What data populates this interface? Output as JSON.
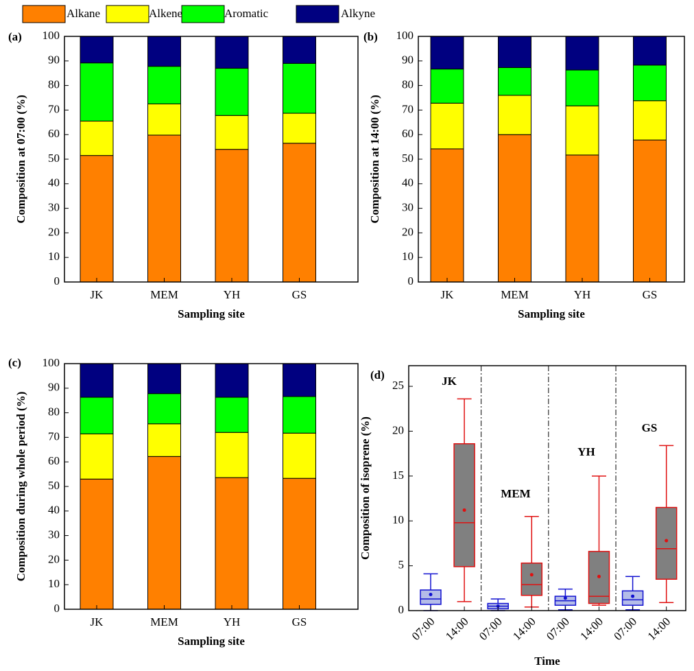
{
  "chart_data": [
    {
      "type": "stacked-bar",
      "label": "(a)",
      "ylabel": "Composition at 07:00 (%)",
      "xlabel": "Sampling site",
      "categories": [
        "JK",
        "MEM",
        "YH",
        "GS"
      ],
      "ylim": [
        0,
        100
      ],
      "yticks": [
        0,
        10,
        20,
        30,
        40,
        50,
        60,
        70,
        80,
        90,
        100
      ],
      "series": [
        {
          "name": "Alkane",
          "color": "#ff8000",
          "values": [
            51.5,
            59.8,
            54,
            56.5
          ]
        },
        {
          "name": "Alkene",
          "color": "#ffff00",
          "values": [
            14,
            12.7,
            13.8,
            12.2
          ]
        },
        {
          "name": "Aromatic",
          "color": "#00ff00",
          "values": [
            23.7,
            15.3,
            19.2,
            20.3
          ]
        },
        {
          "name": "Alkyne",
          "color": "#000080",
          "values": [
            10.8,
            12.2,
            13,
            11
          ]
        }
      ]
    },
    {
      "type": "stacked-bar",
      "label": "(b)",
      "ylabel": "Composition at 14:00 (%)",
      "xlabel": "Sampling site",
      "categories": [
        "JK",
        "MEM",
        "YH",
        "GS"
      ],
      "ylim": [
        0,
        100
      ],
      "yticks": [
        0,
        10,
        20,
        30,
        40,
        50,
        60,
        70,
        80,
        90,
        100
      ],
      "series": [
        {
          "color": "#ff8000",
          "values": [
            54.2,
            60,
            51.7,
            57.8
          ]
        },
        {
          "color": "#ffff00",
          "values": [
            18.6,
            16,
            20,
            16
          ]
        },
        {
          "color": "#00ff00",
          "values": [
            13.9,
            11.3,
            14.6,
            14.5
          ]
        },
        {
          "color": "#000080",
          "values": [
            13.3,
            12.7,
            13.7,
            11.7
          ]
        }
      ]
    },
    {
      "type": "stacked-bar",
      "label": "(c)",
      "ylabel": "Composition during whole period (%)",
      "xlabel": "Sampling site",
      "categories": [
        "JK",
        "MEM",
        "YH",
        "GS"
      ],
      "ylim": [
        0,
        100
      ],
      "yticks": [
        0,
        10,
        20,
        30,
        40,
        50,
        60,
        70,
        80,
        90,
        100
      ],
      "series": [
        {
          "color": "#ff8000",
          "values": [
            53,
            62.2,
            53.6,
            53.3
          ]
        },
        {
          "color": "#ffff00",
          "values": [
            18.4,
            13.3,
            18.4,
            18.4
          ]
        },
        {
          "color": "#00ff00",
          "values": [
            14.9,
            12.3,
            14.3,
            14.9
          ]
        },
        {
          "color": "#000080",
          "values": [
            13.7,
            12.2,
            13.7,
            13.4
          ]
        }
      ]
    },
    {
      "type": "box",
      "label": "(d)",
      "ylabel": "Composition of isoprene (%)",
      "xlabel": "Time",
      "categories": [
        "07:00",
        "14:00",
        "07:00",
        "14:00",
        "07:00",
        "14:00",
        "07:00",
        "14:00"
      ],
      "group_labels": [
        "JK",
        "MEM",
        "YH",
        "GS"
      ],
      "ylim": [
        0,
        27.3
      ],
      "yticks": [
        0,
        5,
        10,
        15,
        20,
        25
      ],
      "boxes": [
        {
          "whislo": 0,
          "q1": 0.7,
          "med": 1.3,
          "q3": 2.3,
          "whishi": 4.1,
          "mean": 1.8,
          "color": "#1010d0",
          "fill": "#b4bce8"
        },
        {
          "whislo": 1,
          "q1": 4.9,
          "med": 9.8,
          "q3": 18.6,
          "whishi": 23.6,
          "mean": 11.2,
          "color": "#e01010",
          "fill": "#808080"
        },
        {
          "whislo": 0,
          "q1": 0.2,
          "med": 0.5,
          "q3": 0.8,
          "whishi": 1.3,
          "mean": 0.5,
          "color": "#1010d0",
          "fill": "#b4bce8"
        },
        {
          "whislo": 0.4,
          "q1": 1.7,
          "med": 2.9,
          "q3": 5.3,
          "whishi": 10.5,
          "mean": 4,
          "color": "#e01010",
          "fill": "#808080"
        },
        {
          "whislo": 0.1,
          "q1": 0.6,
          "med": 1.1,
          "q3": 1.6,
          "whishi": 2.4,
          "mean": 1.4,
          "color": "#1010d0",
          "fill": "#b4bce8"
        },
        {
          "whislo": 0.6,
          "q1": 0.8,
          "med": 1.6,
          "q3": 6.6,
          "whishi": 15,
          "mean": 3.8,
          "color": "#e01010",
          "fill": "#808080"
        },
        {
          "whislo": 0.1,
          "q1": 0.6,
          "med": 1.2,
          "q3": 2.2,
          "whishi": 3.8,
          "mean": 1.6,
          "color": "#1010d0",
          "fill": "#b4bce8"
        },
        {
          "whislo": 0.9,
          "q1": 3.5,
          "med": 6.9,
          "q3": 11.5,
          "whishi": 18.4,
          "mean": 7.8,
          "color": "#e01010",
          "fill": "#808080"
        }
      ]
    }
  ]
}
